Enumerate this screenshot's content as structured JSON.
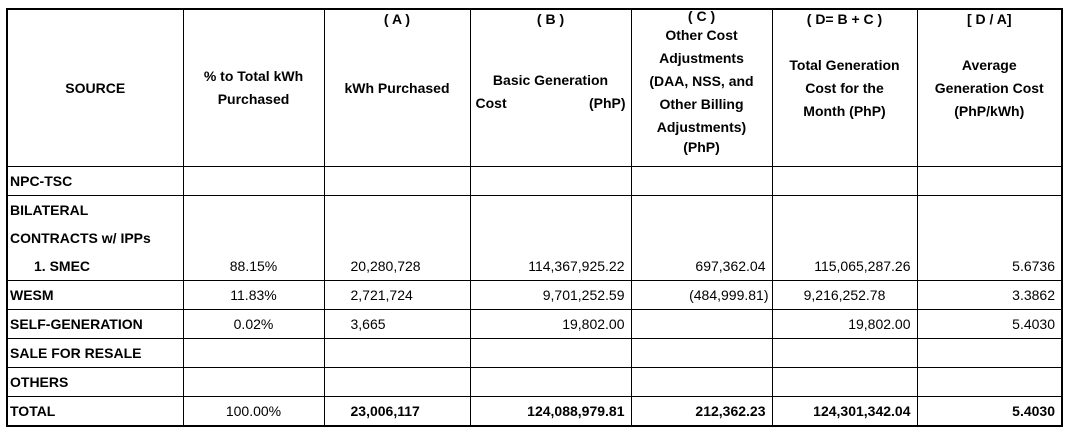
{
  "header": {
    "letters": {
      "a": "( A )",
      "b": "( B )",
      "c": "( C )",
      "d": "( D= B + C )",
      "avg": "[ D / A]"
    },
    "source": "SOURCE",
    "percent_line1": "% to Total kWh",
    "percent_line2": "Purchased",
    "kwh": "kWh Purchased",
    "basic_line1": "Basic Generation",
    "basic_cost": "Cost",
    "basic_unit": "(PhP)",
    "other_line1": "Other Cost",
    "other_line2": "Adjustments",
    "other_line3": "(DAA, NSS, and",
    "other_line4": "Other Billing",
    "other_line5": "Adjustments)",
    "other_line6": "(PhP)",
    "total_line1": "Total Generation",
    "total_line2": "Cost for the",
    "total_line3": "Month (PhP)",
    "avg_line1": "Average",
    "avg_line2": "Generation Cost",
    "avg_line3": "(PhP/kWh)"
  },
  "rows": {
    "npc": {
      "source": "NPC-TSC"
    },
    "bilateral": {
      "line1": "BILATERAL",
      "line2": "CONTRACTS w/ IPPs"
    },
    "smec": {
      "source": "1.  SMEC",
      "percent": "88.15%",
      "kwh": "20,280,728",
      "basic": "114,367,925.22",
      "other": "697,362.04",
      "total": "115,065,287.26",
      "average": "5.6736"
    },
    "wesm": {
      "source": "WESM",
      "percent": "11.83%",
      "kwh": "2,721,724",
      "basic": "9,701,252.59",
      "other": "(484,999.81)",
      "total": "9,216,252.78",
      "average": "3.3862"
    },
    "self_gen": {
      "source": "SELF-GENERATION",
      "percent": "0.02%",
      "kwh": "3,665",
      "basic": "19,802.00",
      "other": "",
      "total": "19,802.00",
      "average": "5.4030"
    },
    "resale": {
      "source": "SALE FOR RESALE"
    },
    "others": {
      "source": "OTHERS"
    },
    "total": {
      "source": "TOTAL",
      "percent": "100.00%",
      "kwh": "23,006,117",
      "basic": "124,088,979.81",
      "other": "212,362.23",
      "total": "124,301,342.04",
      "average": "5.4030"
    }
  }
}
